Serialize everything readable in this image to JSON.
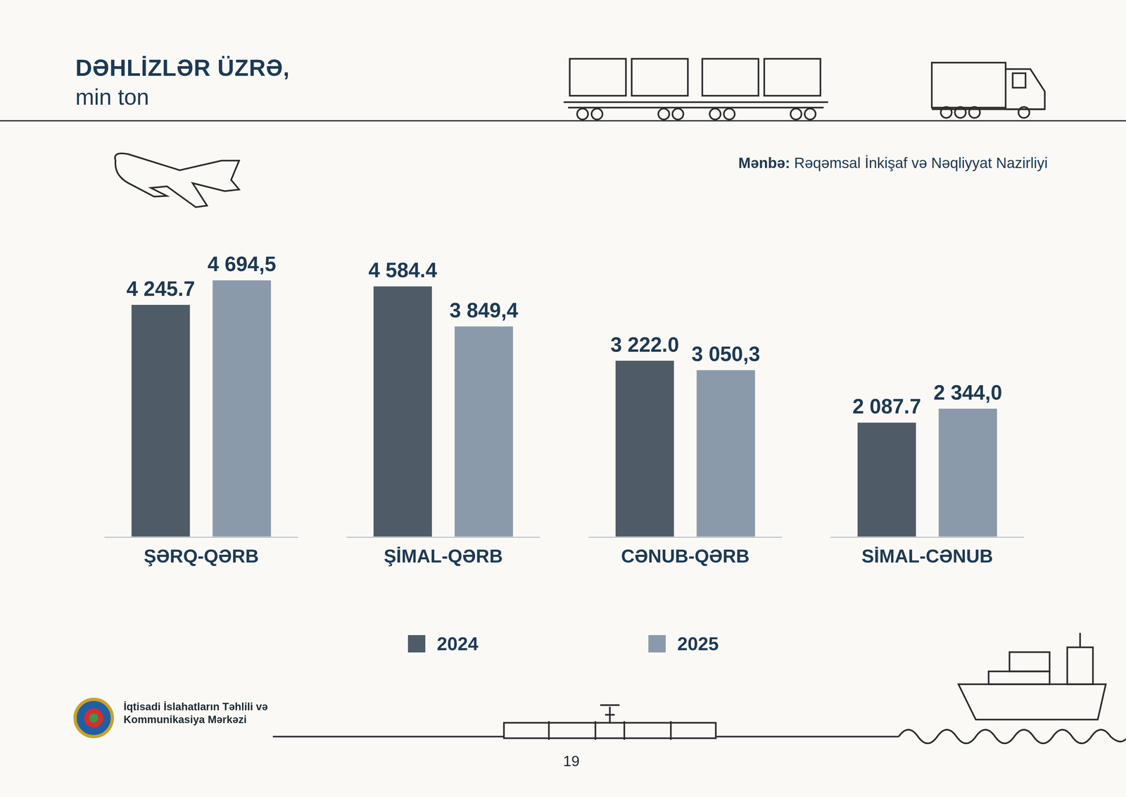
{
  "chart_data": {
    "type": "bar",
    "title": "DƏHLİZLƏR ÜZRƏ,",
    "subtitle": "min ton",
    "categories": [
      "ŞƏRQ-QƏRB",
      "ŞİMAL-QƏRB",
      "CƏNUB-QƏRB",
      "SİMAL-CƏNUB"
    ],
    "series": [
      {
        "name": "2024",
        "color": "#4f5b66",
        "values": [
          4245.7,
          4584.4,
          3222.0,
          2087.7
        ],
        "value_labels": [
          "4 245.7",
          "4 584.4",
          "3 222.0",
          "2 087.7"
        ]
      },
      {
        "name": "2025",
        "color": "#8b9aaa",
        "values": [
          4694.5,
          3849.4,
          3050.3,
          2344.0
        ],
        "value_labels": [
          "4 694,5",
          "3 849,4",
          "3 050,3",
          "2 344,0"
        ]
      }
    ],
    "ylim": [
      0,
      6300
    ],
    "grid": false,
    "legend": "bottom",
    "data_labels": true,
    "tick_labels": "x"
  },
  "source": {
    "label": "Mənbə:",
    "text": "Rəqəmsal İnkişaf və Nəqliyyat Nazirliyi"
  },
  "footer": {
    "organization": "İqtisadi İslahatların Təhlili və Kommunikasiya Mərkəzi",
    "page_number": "19"
  }
}
